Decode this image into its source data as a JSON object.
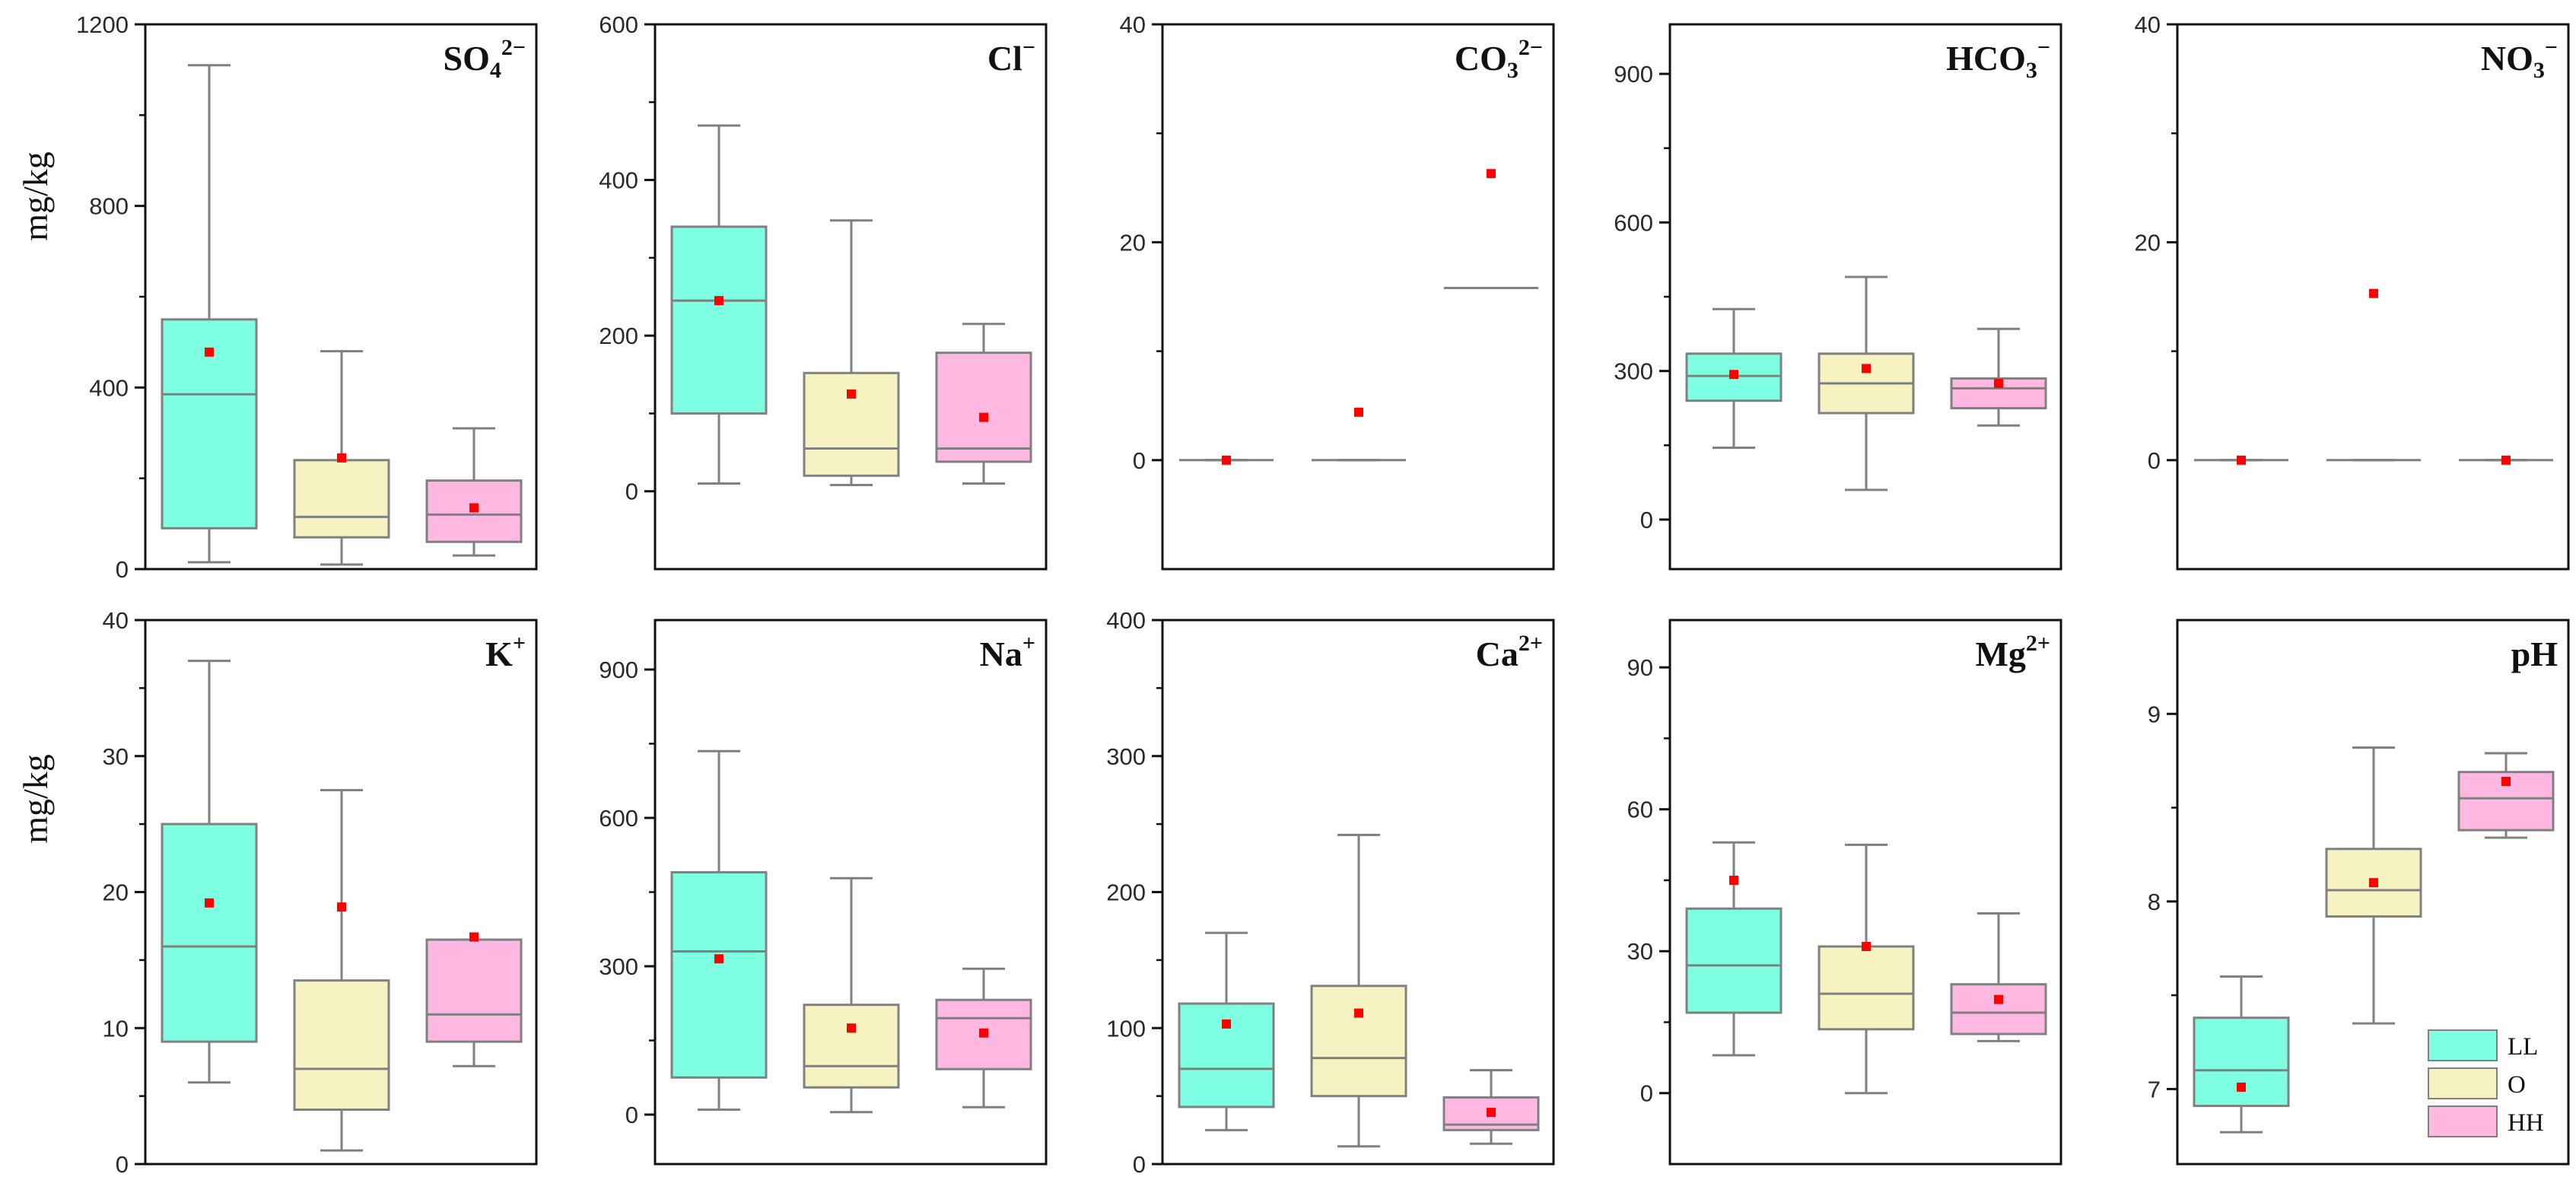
{
  "figure": {
    "ylabel": "mg/kg"
  },
  "chart_data": [
    {
      "type": "box",
      "title": "SO",
      "sub": "4",
      "sup": "2−",
      "ylim": [
        0,
        1200
      ],
      "ticks": [
        0,
        400,
        800,
        1200
      ],
      "series": [
        {
          "name": "LL",
          "whisker_low": 15,
          "q1": 90,
          "median": 385,
          "q3": 550,
          "whisker_high": 1110,
          "mean": 478
        },
        {
          "name": "O",
          "whisker_low": 10,
          "q1": 70,
          "median": 115,
          "q3": 240,
          "whisker_high": 480,
          "mean": 245
        },
        {
          "name": "HH",
          "whisker_low": 30,
          "q1": 60,
          "median": 120,
          "q3": 195,
          "whisker_high": 310,
          "mean": 135
        }
      ]
    },
    {
      "type": "box",
      "title": "Cl",
      "sub": "",
      "sup": "−",
      "ylim": [
        -100,
        600
      ],
      "ticks": [
        0,
        200,
        400,
        600
      ],
      "series": [
        {
          "name": "LL",
          "whisker_low": 10,
          "q1": 100,
          "median": 245,
          "q3": 340,
          "whisker_high": 470,
          "mean": 245
        },
        {
          "name": "O",
          "whisker_low": 8,
          "q1": 20,
          "median": 55,
          "q3": 152,
          "whisker_high": 348,
          "mean": 125
        },
        {
          "name": "HH",
          "whisker_low": 10,
          "q1": 38,
          "median": 55,
          "q3": 178,
          "whisker_high": 215,
          "mean": 95
        }
      ]
    },
    {
      "type": "box",
      "title": "CO",
      "sub": "3",
      "sup": "2−",
      "ylim": [
        -10,
        40
      ],
      "ticks": [
        0,
        20,
        40
      ],
      "series": [
        {
          "name": "LL",
          "whisker_low": 0,
          "q1": 0,
          "median": 0,
          "q3": 0,
          "whisker_high": 0,
          "mean": 0
        },
        {
          "name": "O",
          "whisker_low": 0,
          "q1": 0,
          "median": 0,
          "q3": 0,
          "whisker_high": 0,
          "mean": 4.4
        },
        {
          "name": "HH",
          "whisker_low": 15.8,
          "q1": 15.8,
          "median": 15.8,
          "q3": 15.8,
          "whisker_high": 15.8,
          "mean": 26.3
        }
      ]
    },
    {
      "type": "box",
      "title": "HCO",
      "sub": "3",
      "sup": "−",
      "ylim": [
        -100,
        1000
      ],
      "ticks": [
        0,
        300,
        600,
        900
      ],
      "series": [
        {
          "name": "LL",
          "whisker_low": 145,
          "q1": 240,
          "median": 290,
          "q3": 335,
          "whisker_high": 425,
          "mean": 293
        },
        {
          "name": "O",
          "whisker_low": 60,
          "q1": 215,
          "median": 275,
          "q3": 335,
          "whisker_high": 490,
          "mean": 305
        },
        {
          "name": "HH",
          "whisker_low": 190,
          "q1": 225,
          "median": 265,
          "q3": 285,
          "whisker_high": 385,
          "mean": 275
        }
      ]
    },
    {
      "type": "box",
      "title": "NO",
      "sub": "3",
      "sup": "−",
      "ylim": [
        -10,
        40
      ],
      "ticks": [
        0,
        20,
        40
      ],
      "series": [
        {
          "name": "LL",
          "whisker_low": 0,
          "q1": 0,
          "median": 0,
          "q3": 0,
          "whisker_high": 0,
          "mean": 0
        },
        {
          "name": "O",
          "whisker_low": 0,
          "q1": 0,
          "median": 0,
          "q3": 0,
          "whisker_high": 0,
          "mean": 15.3
        },
        {
          "name": "HH",
          "whisker_low": 0,
          "q1": 0,
          "median": 0,
          "q3": 0,
          "whisker_high": 0,
          "mean": 0
        }
      ]
    },
    {
      "type": "box",
      "title": "K",
      "sub": "",
      "sup": "+",
      "ylim": [
        0,
        40
      ],
      "ticks": [
        0,
        10,
        20,
        30,
        40
      ],
      "series": [
        {
          "name": "LL",
          "whisker_low": 6,
          "q1": 9,
          "median": 16,
          "q3": 25,
          "whisker_high": 37,
          "mean": 19.2
        },
        {
          "name": "O",
          "whisker_low": 1,
          "q1": 4,
          "median": 7,
          "q3": 13.5,
          "whisker_high": 27.5,
          "mean": 18.9
        },
        {
          "name": "HH",
          "whisker_low": 7.2,
          "q1": 9,
          "median": 11,
          "q3": 16.5,
          "whisker_high": 16.5,
          "mean": 16.7
        }
      ]
    },
    {
      "type": "box",
      "title": "Na",
      "sub": "",
      "sup": "+",
      "ylim": [
        -100,
        1000
      ],
      "ticks": [
        0,
        300,
        600,
        900
      ],
      "series": [
        {
          "name": "LL",
          "whisker_low": 10,
          "q1": 75,
          "median": 330,
          "q3": 490,
          "whisker_high": 735,
          "mean": 315
        },
        {
          "name": "O",
          "whisker_low": 5,
          "q1": 55,
          "median": 98,
          "q3": 222,
          "whisker_high": 478,
          "mean": 175
        },
        {
          "name": "HH",
          "whisker_low": 15,
          "q1": 92,
          "median": 195,
          "q3": 232,
          "whisker_high": 295,
          "mean": 165
        }
      ]
    },
    {
      "type": "box",
      "title": "Ca",
      "sub": "",
      "sup": "2+",
      "ylim": [
        0,
        400
      ],
      "ticks": [
        0,
        100,
        200,
        300,
        400
      ],
      "series": [
        {
          "name": "LL",
          "whisker_low": 25,
          "q1": 42,
          "median": 70,
          "q3": 118,
          "whisker_high": 170,
          "mean": 103
        },
        {
          "name": "O",
          "whisker_low": 13,
          "q1": 50,
          "median": 78,
          "q3": 131,
          "whisker_high": 242,
          "mean": 111
        },
        {
          "name": "HH",
          "whisker_low": 15,
          "q1": 25,
          "median": 29,
          "q3": 49,
          "whisker_high": 69,
          "mean": 38
        }
      ]
    },
    {
      "type": "box",
      "title": "Mg",
      "sub": "",
      "sup": "2+",
      "ylim": [
        -15,
        100
      ],
      "ticks": [
        0,
        30,
        60,
        90
      ],
      "series": [
        {
          "name": "LL",
          "whisker_low": 8,
          "q1": 17,
          "median": 27,
          "q3": 39,
          "whisker_high": 53,
          "mean": 45
        },
        {
          "name": "O",
          "whisker_low": 0,
          "q1": 13.5,
          "median": 21,
          "q3": 31,
          "whisker_high": 52.5,
          "mean": 31
        },
        {
          "name": "HH",
          "whisker_low": 11,
          "q1": 12.5,
          "median": 17,
          "q3": 23,
          "whisker_high": 38,
          "mean": 19.8
        }
      ]
    },
    {
      "type": "box",
      "title": "pH",
      "sub": "",
      "sup": "",
      "ylim": [
        6.6,
        9.5
      ],
      "ticks": [
        7,
        8,
        9
      ],
      "series": [
        {
          "name": "LL",
          "whisker_low": 6.77,
          "q1": 6.91,
          "median": 7.1,
          "q3": 7.38,
          "whisker_high": 7.6,
          "mean": 7.01
        },
        {
          "name": "O",
          "whisker_low": 7.35,
          "q1": 7.92,
          "median": 8.06,
          "q3": 8.28,
          "whisker_high": 8.82,
          "mean": 8.1
        },
        {
          "name": "HH",
          "whisker_low": 8.34,
          "q1": 8.38,
          "median": 8.55,
          "q3": 8.69,
          "whisker_high": 8.79,
          "mean": 8.64
        }
      ]
    }
  ],
  "legend": [
    {
      "name": "LL",
      "color": "#7fffe2"
    },
    {
      "name": "O",
      "color": "#f7f2c1"
    },
    {
      "name": "HH",
      "color": "#ffb8e2"
    }
  ],
  "colors": {
    "LL": "#7fffe2",
    "O": "#f7f2c1",
    "HH": "#ffb8e2",
    "mean": "#ff0000",
    "box_edge": "#808080",
    "frame": "#111111"
  }
}
